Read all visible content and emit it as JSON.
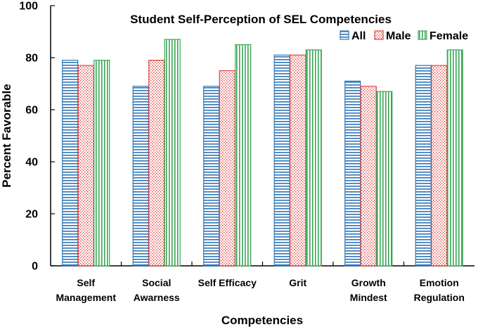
{
  "chart_data": {
    "type": "bar",
    "title": "Student Self-Perception of SEL Competencies",
    "xlabel": "Competencies",
    "ylabel": "Percent Favorable",
    "ylim": [
      0,
      100
    ],
    "yticks": [
      0,
      20,
      40,
      60,
      80,
      100
    ],
    "categories": [
      [
        "Self",
        "Management"
      ],
      [
        "Social",
        "Awarness"
      ],
      [
        "Self Efficacy"
      ],
      [
        "Grit"
      ],
      [
        "Growth",
        "Mindest"
      ],
      [
        "Emotion",
        "Regulation"
      ]
    ],
    "series": [
      {
        "name": "All",
        "color": "#2e75b6",
        "pattern": "horizontal-lines",
        "values": [
          79,
          69,
          69,
          81,
          71,
          77
        ]
      },
      {
        "name": "Male",
        "color": "#e04040",
        "pattern": "dots",
        "values": [
          77,
          79,
          75,
          81,
          69,
          77
        ]
      },
      {
        "name": "Female",
        "color": "#3aa655",
        "pattern": "vertical-lines",
        "values": [
          79,
          87,
          85,
          83,
          67,
          83
        ]
      }
    ],
    "grid": false,
    "legend_position": "top-right"
  }
}
